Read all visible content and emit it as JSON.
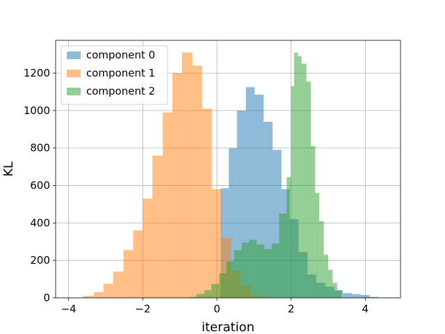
{
  "chart_data": {
    "type": "bar",
    "title": "",
    "xlabel": "iteration",
    "ylabel": "KL",
    "xlim": [
      -4.35,
      4.95
    ],
    "ylim": [
      0,
      1375
    ],
    "xticks": [
      -4,
      -2,
      0,
      2,
      4
    ],
    "xtick_labels": [
      "−4",
      "−2",
      "0",
      "2",
      "4"
    ],
    "yticks": [
      0,
      200,
      400,
      600,
      800,
      1000,
      1200
    ],
    "ytick_labels": [
      "0",
      "200",
      "400",
      "600",
      "800",
      "1000",
      "1200"
    ],
    "grid": true,
    "legend": "top-left",
    "series": [
      {
        "name": "component 0",
        "color": "#1f77b4",
        "opacity": 0.5,
        "bins": [
          [
            0.1,
            0.32,
            585
          ],
          [
            0.32,
            0.54,
            800
          ],
          [
            0.54,
            0.78,
            1000
          ],
          [
            0.78,
            1.02,
            1125
          ],
          [
            1.02,
            1.26,
            1085
          ],
          [
            1.26,
            1.5,
            940
          ],
          [
            1.5,
            1.74,
            790
          ],
          [
            1.74,
            1.96,
            580
          ],
          [
            1.96,
            2.2,
            420
          ],
          [
            2.2,
            2.44,
            245
          ],
          [
            2.44,
            2.68,
            125
          ],
          [
            2.68,
            2.92,
            80
          ],
          [
            2.92,
            3.16,
            60
          ],
          [
            3.16,
            3.4,
            40
          ],
          [
            3.4,
            3.64,
            25
          ],
          [
            3.64,
            3.88,
            20
          ],
          [
            3.88,
            4.12,
            15
          ],
          [
            4.12,
            4.36,
            5
          ]
        ]
      },
      {
        "name": "component 1",
        "color": "#ff7f0e",
        "opacity": 0.5,
        "bins": [
          [
            -3.6,
            -3.32,
            10
          ],
          [
            -3.32,
            -3.06,
            30
          ],
          [
            -3.06,
            -2.8,
            75
          ],
          [
            -2.8,
            -2.52,
            140
          ],
          [
            -2.52,
            -2.26,
            255
          ],
          [
            -2.26,
            -2.0,
            360
          ],
          [
            -2.0,
            -1.74,
            530
          ],
          [
            -1.74,
            -1.46,
            760
          ],
          [
            -1.46,
            -1.2,
            990
          ],
          [
            -1.2,
            -0.94,
            1200
          ],
          [
            -0.94,
            -0.66,
            1310
          ],
          [
            -0.66,
            -0.4,
            1240
          ],
          [
            -0.4,
            -0.14,
            1010
          ],
          [
            -0.14,
            0.12,
            580
          ],
          [
            0.12,
            0.38,
            320
          ],
          [
            0.38,
            0.64,
            145
          ],
          [
            0.64,
            0.9,
            65
          ],
          [
            0.9,
            1.16,
            15
          ],
          [
            1.16,
            1.42,
            5
          ]
        ]
      },
      {
        "name": "component 2",
        "color": "#2ca02c",
        "opacity": 0.5,
        "bins": [
          [
            -0.75,
            -0.55,
            5
          ],
          [
            -0.55,
            -0.34,
            20
          ],
          [
            -0.34,
            -0.15,
            40
          ],
          [
            -0.15,
            0.06,
            75
          ],
          [
            0.06,
            0.26,
            130
          ],
          [
            0.26,
            0.46,
            195
          ],
          [
            0.46,
            0.67,
            255
          ],
          [
            0.67,
            0.87,
            295
          ],
          [
            0.87,
            1.07,
            310
          ],
          [
            1.07,
            1.28,
            285
          ],
          [
            1.28,
            1.48,
            260
          ],
          [
            1.48,
            1.68,
            290
          ],
          [
            1.68,
            1.88,
            450
          ],
          [
            1.88,
            2.0,
            645
          ],
          [
            2.0,
            2.08,
            1130
          ],
          [
            2.08,
            2.18,
            1310
          ],
          [
            2.18,
            2.28,
            1290
          ],
          [
            2.28,
            2.41,
            1250
          ],
          [
            2.41,
            2.53,
            1155
          ],
          [
            2.53,
            2.65,
            810
          ],
          [
            2.65,
            2.76,
            560
          ],
          [
            2.76,
            2.88,
            410
          ],
          [
            2.88,
            3.0,
            230
          ],
          [
            3.0,
            3.12,
            150
          ],
          [
            3.12,
            3.24,
            80
          ],
          [
            3.24,
            3.36,
            40
          ]
        ]
      }
    ]
  }
}
